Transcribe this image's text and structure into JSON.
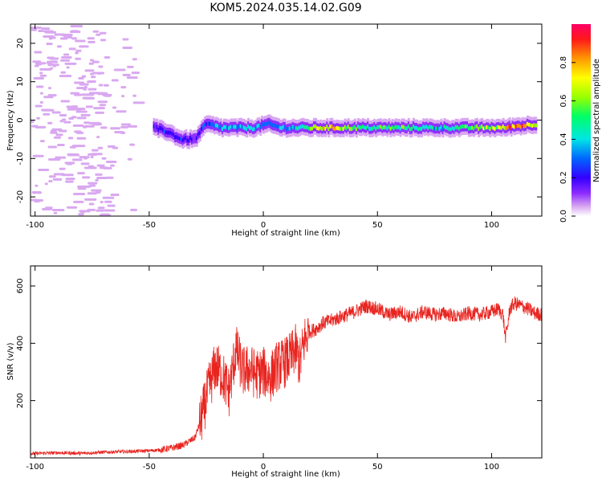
{
  "title": "KOM5.2024.035.14.02.G09",
  "colors": {
    "snr_line": "#e8241f",
    "axes": "#000000",
    "colormap": [
      "#ffffff",
      "#d9a8f0",
      "#8c2bff",
      "#3300ff",
      "#0066ff",
      "#00e5e5",
      "#00ff66",
      "#99ff00",
      "#ffff00",
      "#ff9900",
      "#ff1a1a",
      "#ff0066"
    ]
  },
  "chart_data": [
    {
      "type": "heatmap",
      "xlabel": "Height of straight line (km)",
      "ylabel": "Frequency (Hz)",
      "xlim": [
        -102,
        122
      ],
      "ylim": [
        -25,
        25
      ],
      "xticks": [
        -100,
        -50,
        0,
        50,
        100
      ],
      "yticks": [
        -20,
        -10,
        0,
        10,
        20
      ],
      "xtick_labels": [
        "-100",
        "-50",
        "0",
        "50",
        "100"
      ],
      "ytick_labels": [
        "-20",
        "-10",
        "0",
        "10",
        "20"
      ],
      "colorbar": {
        "label": "Normalized spectral amplitude",
        "range": [
          0,
          1
        ],
        "ticks": [
          0.0,
          0.2,
          0.4,
          0.6,
          0.8
        ],
        "tick_labels": [
          "0.0",
          "0.2",
          "0.4",
          "0.6",
          "0.8"
        ]
      },
      "ridge": [
        {
          "x": -48,
          "y": -2,
          "amp": 0.25
        },
        {
          "x": -42,
          "y": -3,
          "amp": 0.3
        },
        {
          "x": -36,
          "y": -5,
          "amp": 0.3
        },
        {
          "x": -30,
          "y": -5,
          "amp": 0.25
        },
        {
          "x": -25,
          "y": -1,
          "amp": 0.35
        },
        {
          "x": -18,
          "y": -2,
          "amp": 0.4
        },
        {
          "x": -10,
          "y": -2,
          "amp": 0.45
        },
        {
          "x": -4,
          "y": -2,
          "amp": 0.45
        },
        {
          "x": 2,
          "y": -1,
          "amp": 0.35
        },
        {
          "x": 8,
          "y": -2,
          "amp": 0.4
        },
        {
          "x": 15,
          "y": -2,
          "amp": 0.45
        },
        {
          "x": 20,
          "y": -2,
          "amp": 0.6
        },
        {
          "x": 30,
          "y": -2,
          "amp": 0.75
        },
        {
          "x": 45,
          "y": -2,
          "amp": 0.5
        },
        {
          "x": 60,
          "y": -2,
          "amp": 0.55
        },
        {
          "x": 75,
          "y": -2,
          "amp": 0.45
        },
        {
          "x": 90,
          "y": -2,
          "amp": 0.55
        },
        {
          "x": 105,
          "y": -2,
          "amp": 0.7
        },
        {
          "x": 112,
          "y": -1.5,
          "amp": 0.9
        },
        {
          "x": 120,
          "y": -1,
          "amp": 0.6
        }
      ],
      "noise_x_range": [
        -102,
        -55
      ]
    },
    {
      "type": "line",
      "xlabel": "Height of straight line (km)",
      "ylabel": "SNR (v/v)",
      "xlim": [
        -102,
        122
      ],
      "ylim": [
        0,
        670
      ],
      "xticks": [
        -100,
        -50,
        0,
        50,
        100
      ],
      "yticks": [
        200,
        400,
        600
      ],
      "xtick_labels": [
        "-100",
        "-50",
        "0",
        "50",
        "100"
      ],
      "ytick_labels": [
        "200",
        "400",
        "600"
      ],
      "series": [
        {
          "x": [
            -102,
            -90,
            -80,
            -70,
            -60,
            -50,
            -45,
            -40,
            -35,
            -30,
            -27,
            -24,
            -21,
            -18,
            -15,
            -12,
            -9,
            -6,
            -3,
            0,
            3,
            6,
            9,
            12,
            14,
            16,
            18,
            20,
            23,
            26,
            30,
            35,
            40,
            45,
            50,
            55,
            60,
            65,
            70,
            75,
            80,
            85,
            90,
            95,
            100,
            103,
            105,
            106,
            107,
            108,
            110,
            113,
            116,
            119,
            122
          ],
          "y": [
            15,
            18,
            16,
            20,
            22,
            25,
            28,
            35,
            45,
            70,
            140,
            240,
            320,
            290,
            230,
            380,
            300,
            310,
            290,
            300,
            280,
            320,
            330,
            350,
            380,
            330,
            410,
            440,
            450,
            470,
            480,
            495,
            510,
            530,
            520,
            500,
            510,
            490,
            510,
            500,
            505,
            490,
            505,
            500,
            510,
            520,
            500,
            420,
            460,
            520,
            540,
            530,
            520,
            505,
            500
          ]
        }
      ]
    }
  ]
}
